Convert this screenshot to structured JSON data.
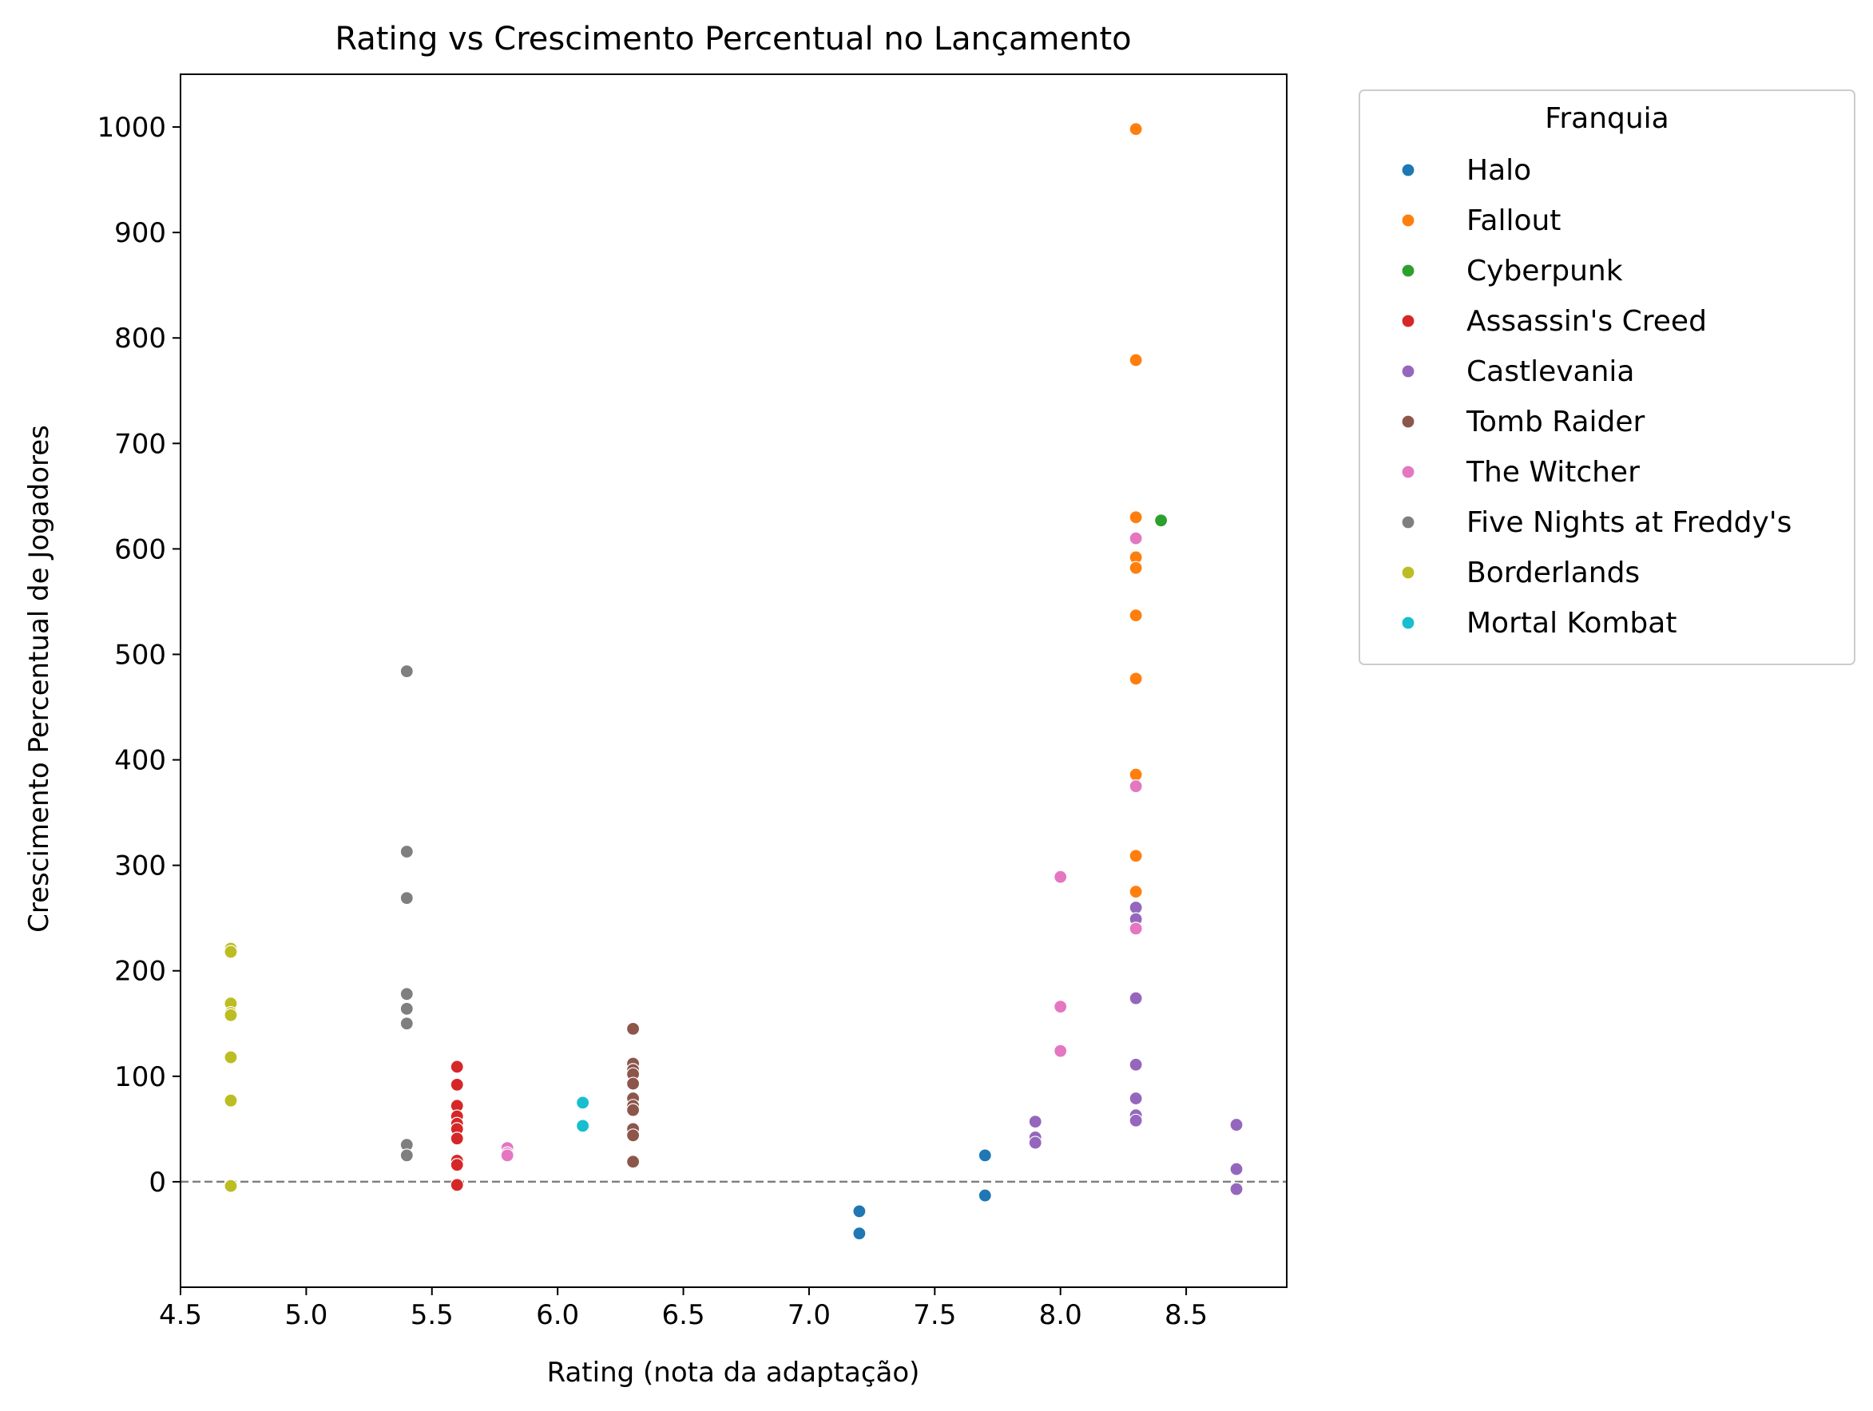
{
  "chart_data": {
    "type": "scatter",
    "title": "Rating vs Crescimento Percentual no Lançamento",
    "xlabel": "Rating (nota da adaptação)",
    "ylabel": "Crescimento Percentual de Jogadores",
    "xlim": [
      4.5,
      8.9
    ],
    "ylim": [
      -100,
      1050
    ],
    "xticks": [
      4.5,
      5.0,
      5.5,
      6.0,
      6.5,
      7.0,
      7.5,
      8.0,
      8.5
    ],
    "xtick_labels": [
      "4.5",
      "5.0",
      "5.5",
      "6.0",
      "6.5",
      "7.0",
      "7.5",
      "8.0",
      "8.5"
    ],
    "yticks": [
      0,
      100,
      200,
      300,
      400,
      500,
      600,
      700,
      800,
      900,
      1000
    ],
    "ytick_labels": [
      "0",
      "100",
      "200",
      "300",
      "400",
      "500",
      "600",
      "700",
      "800",
      "900",
      "1000"
    ],
    "reference_line": {
      "y": 0,
      "style": "dashed",
      "color": "#808080"
    },
    "grid": false,
    "legend": {
      "title": "Franquia",
      "placement": "outside-right-top"
    },
    "series": [
      {
        "name": "Halo",
        "color": "#1f77b4",
        "points": [
          [
            7.2,
            -28
          ],
          [
            7.2,
            -49
          ],
          [
            7.7,
            25
          ],
          [
            7.7,
            -13
          ]
        ]
      },
      {
        "name": "Fallout",
        "color": "#ff7f0e",
        "points": [
          [
            8.3,
            998
          ],
          [
            8.3,
            779
          ],
          [
            8.3,
            630
          ],
          [
            8.3,
            592
          ],
          [
            8.3,
            582
          ],
          [
            8.3,
            537
          ],
          [
            8.3,
            477
          ],
          [
            8.3,
            386
          ],
          [
            8.3,
            309
          ],
          [
            8.3,
            275
          ]
        ]
      },
      {
        "name": "Cyberpunk",
        "color": "#2ca02c",
        "points": [
          [
            8.4,
            627
          ]
        ]
      },
      {
        "name": "Assassin's Creed",
        "color": "#d62728",
        "points": [
          [
            5.6,
            109
          ],
          [
            5.6,
            92
          ],
          [
            5.6,
            72
          ],
          [
            5.6,
            62
          ],
          [
            5.6,
            55
          ],
          [
            5.6,
            50
          ],
          [
            5.6,
            41
          ],
          [
            5.6,
            20
          ],
          [
            5.6,
            16
          ],
          [
            5.6,
            -3
          ]
        ]
      },
      {
        "name": "Castlevania",
        "color": "#9467bd",
        "points": [
          [
            7.9,
            57
          ],
          [
            7.9,
            42
          ],
          [
            7.9,
            37
          ],
          [
            8.3,
            260
          ],
          [
            8.3,
            249
          ],
          [
            8.3,
            174
          ],
          [
            8.3,
            111
          ],
          [
            8.3,
            79
          ],
          [
            8.3,
            63
          ],
          [
            8.3,
            58
          ],
          [
            8.7,
            54
          ],
          [
            8.7,
            12
          ],
          [
            8.7,
            -7
          ]
        ]
      },
      {
        "name": "Tomb Raider",
        "color": "#8c564b",
        "points": [
          [
            6.3,
            145
          ],
          [
            6.3,
            112
          ],
          [
            6.3,
            106
          ],
          [
            6.3,
            102
          ],
          [
            6.3,
            93
          ],
          [
            6.3,
            79
          ],
          [
            6.3,
            72
          ],
          [
            6.3,
            68
          ],
          [
            6.3,
            50
          ],
          [
            6.3,
            44
          ],
          [
            6.3,
            19
          ]
        ]
      },
      {
        "name": "The Witcher",
        "color": "#e377c2",
        "points": [
          [
            5.8,
            32
          ],
          [
            5.8,
            27
          ],
          [
            5.8,
            25
          ],
          [
            8.0,
            289
          ],
          [
            8.0,
            166
          ],
          [
            8.0,
            124
          ],
          [
            8.3,
            610
          ],
          [
            8.3,
            375
          ],
          [
            8.3,
            240
          ]
        ]
      },
      {
        "name": "Five Nights at Freddy's",
        "color": "#7f7f7f",
        "points": [
          [
            5.4,
            484
          ],
          [
            5.4,
            313
          ],
          [
            5.4,
            269
          ],
          [
            5.4,
            178
          ],
          [
            5.4,
            164
          ],
          [
            5.4,
            150
          ],
          [
            5.4,
            35
          ],
          [
            5.4,
            25
          ]
        ]
      },
      {
        "name": "Borderlands",
        "color": "#bcbd22",
        "points": [
          [
            4.7,
            221
          ],
          [
            4.7,
            218
          ],
          [
            4.7,
            169
          ],
          [
            4.7,
            160
          ],
          [
            4.7,
            158
          ],
          [
            4.7,
            118
          ],
          [
            4.7,
            77
          ],
          [
            4.7,
            -4
          ]
        ]
      },
      {
        "name": "Mortal Kombat",
        "color": "#17becf",
        "points": [
          [
            6.1,
            75
          ],
          [
            6.1,
            53
          ]
        ]
      }
    ]
  }
}
